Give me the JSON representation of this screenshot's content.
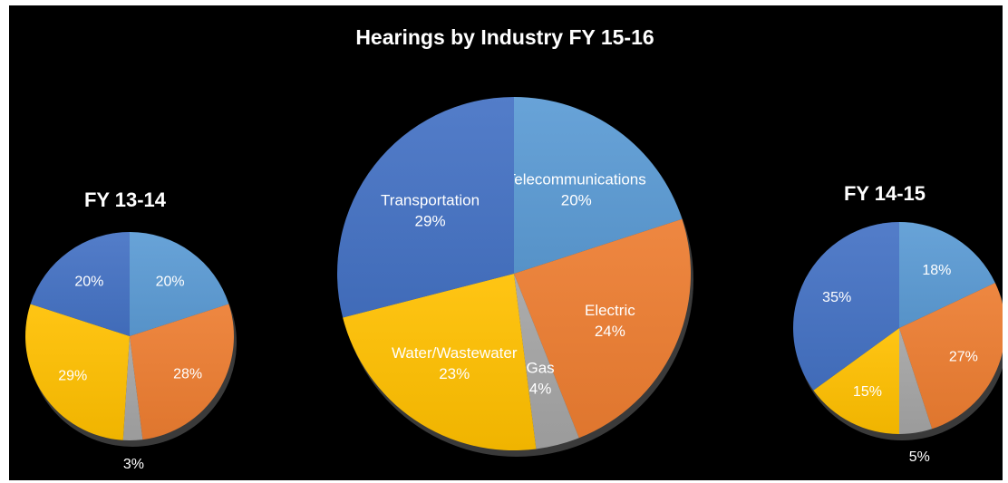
{
  "colors": {
    "background": "#000000",
    "text": "#ffffff",
    "series": {
      "Telecommunications": "#5B9BD5",
      "Electric": "#ED7D31",
      "Gas": "#A5A5A5",
      "Water/Wastewater": "#FFC000",
      "Transportation": "#4472C4"
    }
  },
  "chart_data": [
    {
      "type": "pie",
      "title": "FY 13-14",
      "show_category_labels": false,
      "categories": [
        "Telecommunications",
        "Electric",
        "Gas",
        "Water/Wastewater",
        "Transportation"
      ],
      "values": [
        20,
        28,
        3,
        29,
        20
      ],
      "value_labels": [
        "20%",
        "28%",
        "3%",
        "29%",
        "20%"
      ]
    },
    {
      "type": "pie",
      "title": "Hearings by Industry FY 15-16",
      "show_category_labels": true,
      "categories": [
        "Telecommunications",
        "Electric",
        "Gas",
        "Water/Wastewater",
        "Transportation"
      ],
      "values": [
        20,
        24,
        4,
        23,
        29
      ],
      "value_labels": [
        "20%",
        "24%",
        "4%",
        "23%",
        "29%"
      ]
    },
    {
      "type": "pie",
      "title": "FY 14-15",
      "show_category_labels": false,
      "categories": [
        "Telecommunications",
        "Electric",
        "Gas",
        "Water/Wastewater",
        "Transportation"
      ],
      "values": [
        18,
        27,
        5,
        15,
        35
      ],
      "value_labels": [
        "18%",
        "27%",
        "5%",
        "15%",
        "35%"
      ]
    }
  ]
}
